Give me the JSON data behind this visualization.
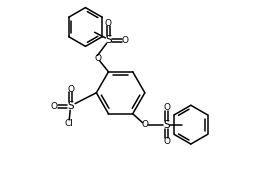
{
  "bg_color": "#ffffff",
  "line_color": "#000000",
  "line_width": 1.1,
  "font_size": 6.5,
  "fig_width": 2.63,
  "fig_height": 1.71,
  "dpi": 100,
  "xlim": [
    0,
    10.5
  ],
  "ylim": [
    0,
    7.0
  ]
}
